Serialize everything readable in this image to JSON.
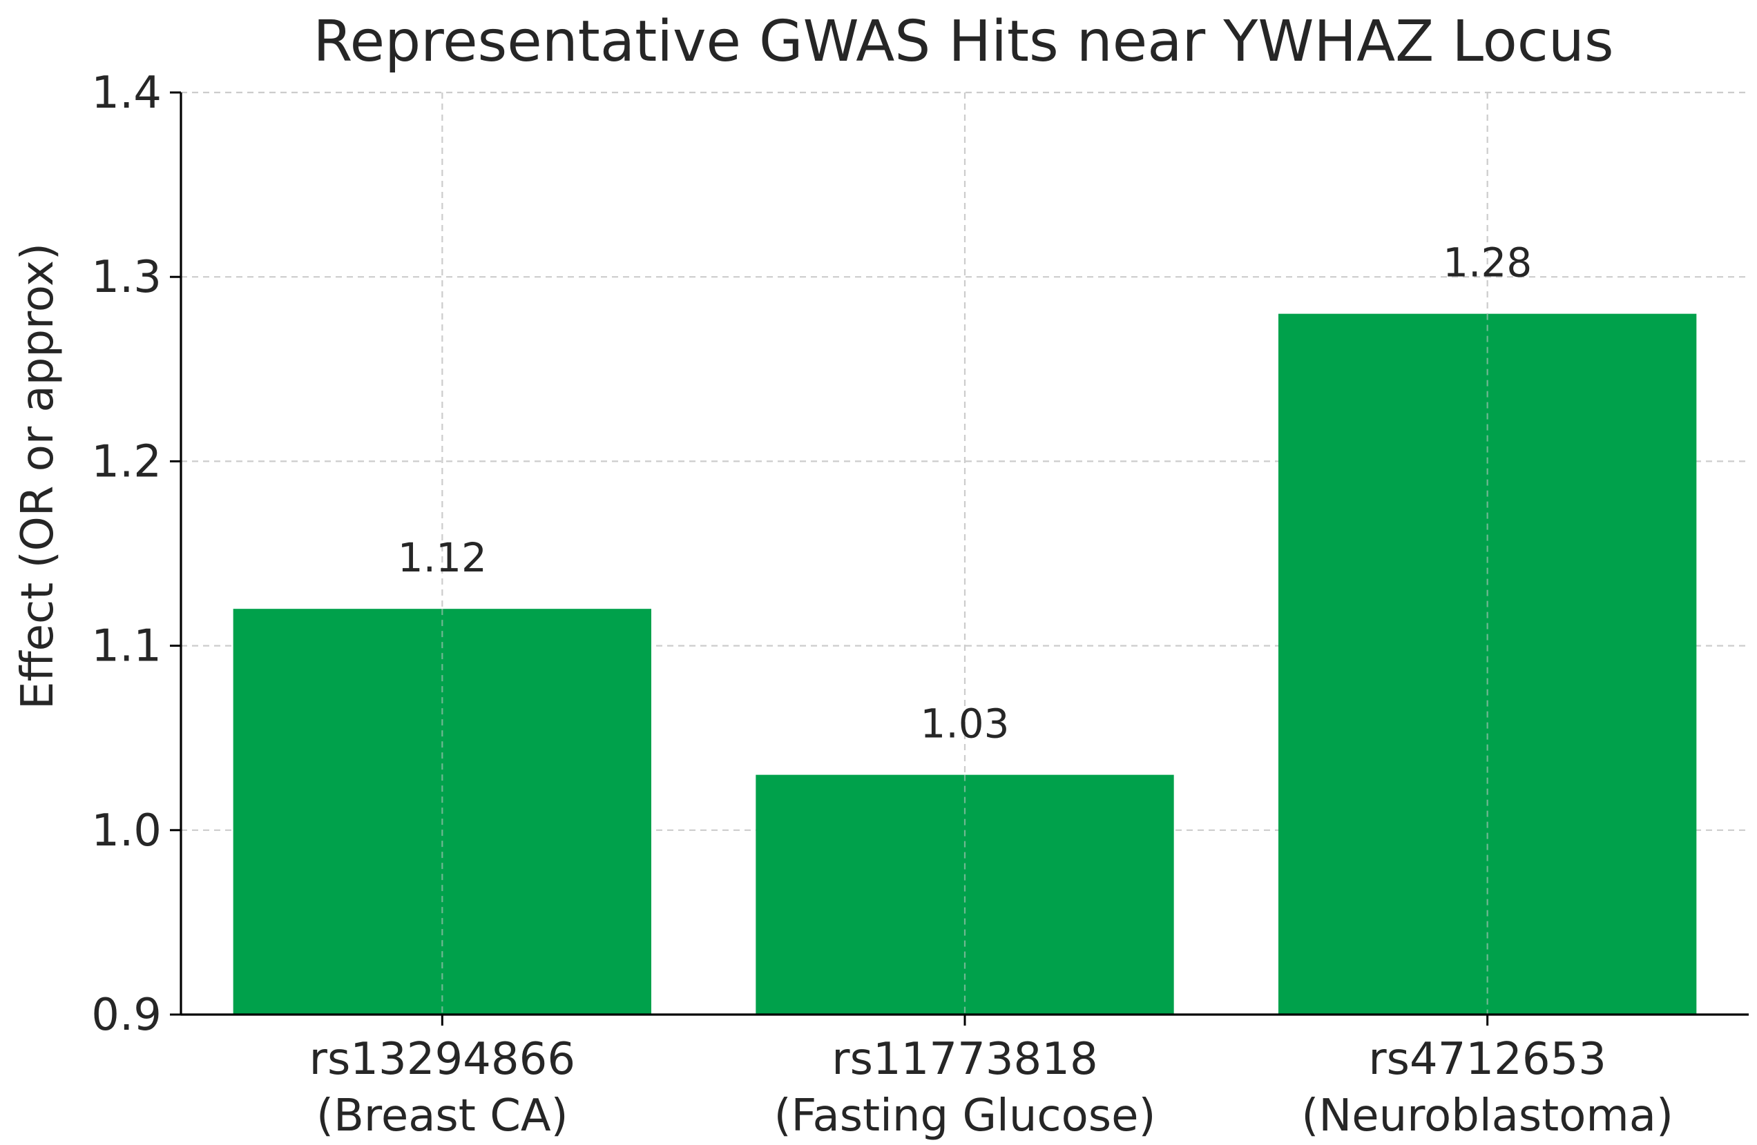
{
  "chart_data": {
    "type": "bar",
    "title": "Representative GWAS Hits near YWHAZ Locus",
    "xlabel": "",
    "ylabel": "Effect (OR or approx)",
    "categories": [
      [
        "rs13294866",
        "(Breast CA)"
      ],
      [
        "rs11773818",
        "(Fasting Glucose)"
      ],
      [
        "rs4712653",
        "(Neuroblastoma)"
      ]
    ],
    "values": [
      1.12,
      1.03,
      1.28
    ],
    "value_labels": [
      "1.12",
      "1.03",
      "1.28"
    ],
    "ylim": [
      0.9,
      1.4
    ],
    "yticks": [
      "0.9",
      "1.0",
      "1.1",
      "1.2",
      "1.3",
      "1.4"
    ],
    "grid": true,
    "bar_color": "#00a14b",
    "text_color": "#262626",
    "grid_color": "#cccccc"
  }
}
